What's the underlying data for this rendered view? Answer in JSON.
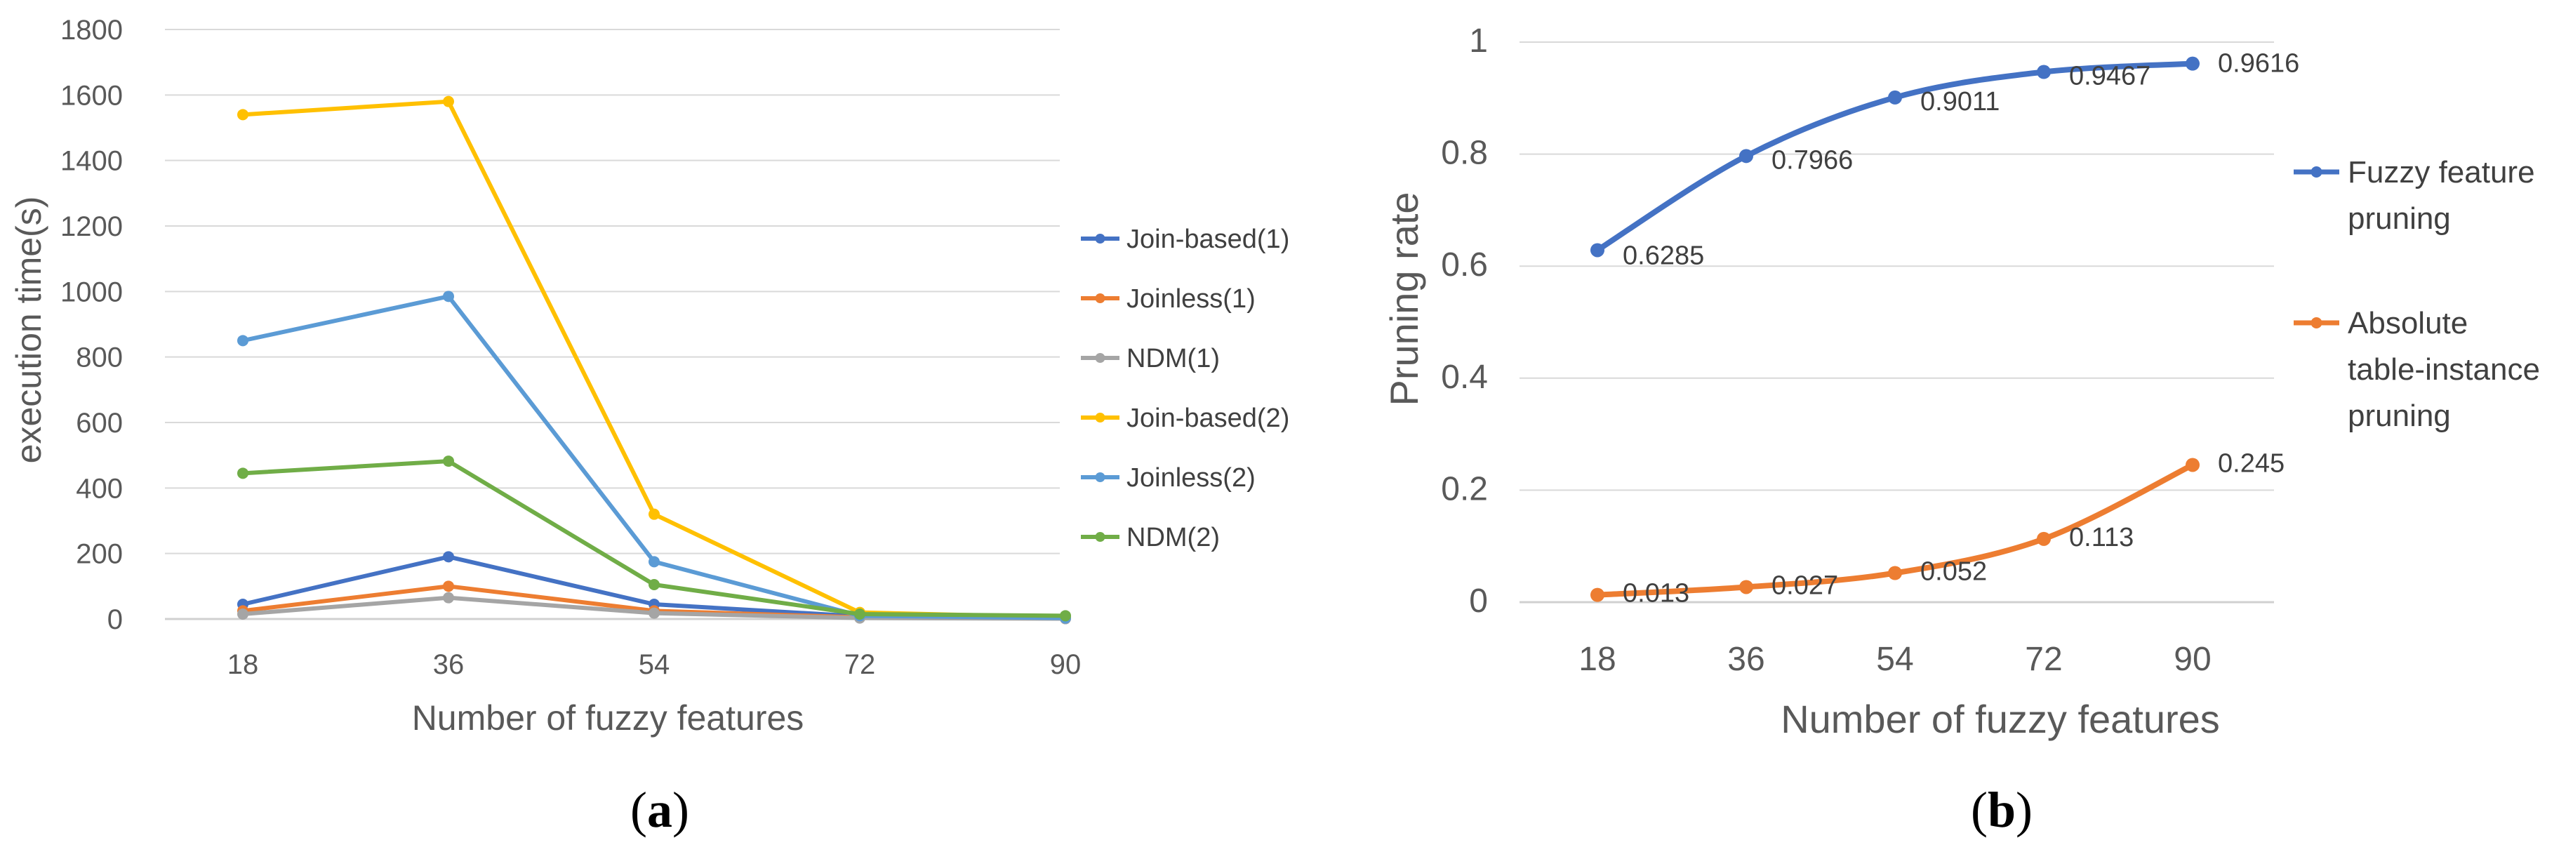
{
  "chart_data": [
    {
      "type": "line",
      "panel_label": "a",
      "title": "",
      "xlabel": "Number of fuzzy features",
      "ylabel": "execution time(s)",
      "categories": [
        "18",
        "36",
        "54",
        "72",
        "90"
      ],
      "ylim": [
        0,
        1800
      ],
      "yticks": [
        0,
        200,
        400,
        600,
        800,
        1000,
        1200,
        1400,
        1600,
        1800
      ],
      "grid": true,
      "legend_position": "right",
      "series": [
        {
          "name": "Join-based(1)",
          "color": "#4472c4",
          "values": [
            45,
            190,
            45,
            8,
            3
          ]
        },
        {
          "name": "Joinless(1)",
          "color": "#ed7d31",
          "values": [
            25,
            100,
            25,
            5,
            2
          ]
        },
        {
          "name": "NDM(1)",
          "color": "#a5a5a5",
          "values": [
            15,
            65,
            18,
            3,
            1
          ]
        },
        {
          "name": "Join-based(2)",
          "color": "#ffc000",
          "values": [
            1540,
            1580,
            320,
            20,
            5
          ]
        },
        {
          "name": "Joinless(2)",
          "color": "#5b9bd5",
          "values": [
            850,
            985,
            175,
            10,
            3
          ]
        },
        {
          "name": "NDM(2)",
          "color": "#70ad47",
          "values": [
            445,
            482,
            105,
            15,
            10
          ]
        }
      ]
    },
    {
      "type": "line",
      "panel_label": "b",
      "title": "",
      "xlabel": "Number of fuzzy features",
      "ylabel": "Pruning rate",
      "categories": [
        "18",
        "36",
        "54",
        "72",
        "90"
      ],
      "ylim": [
        0,
        1
      ],
      "yticks": [
        0,
        0.2,
        0.4,
        0.6,
        0.8,
        1
      ],
      "grid": true,
      "legend_position": "right",
      "series": [
        {
          "name": "Fuzzy feature pruning",
          "color": "#4472c4",
          "values": [
            0.6285,
            0.7966,
            0.9011,
            0.9467,
            0.9616
          ],
          "labels": [
            "0.6285",
            "0.7966",
            "0.9011",
            "0.9467",
            "0.9616"
          ]
        },
        {
          "name": "Absolute table-instance pruning",
          "color": "#ed7d31",
          "values": [
            0.013,
            0.027,
            0.052,
            0.113,
            0.245
          ],
          "labels": [
            "0.013",
            "0.027",
            "0.052",
            "0.113",
            "0.245"
          ]
        }
      ]
    }
  ]
}
